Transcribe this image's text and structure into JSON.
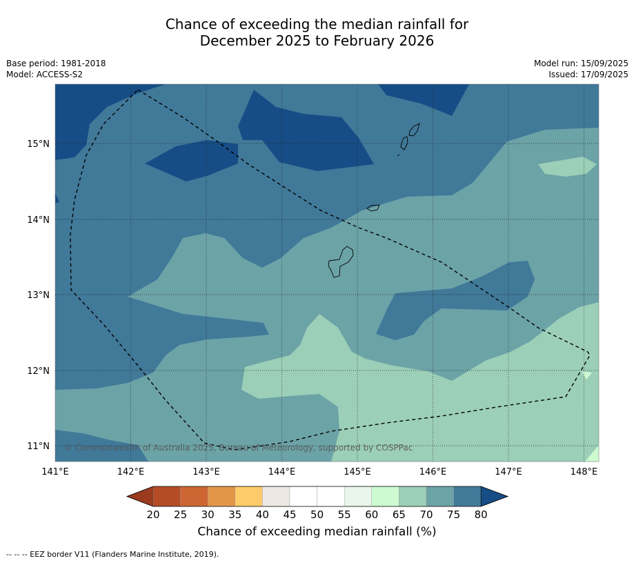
{
  "title": {
    "line1": "Chance of exceeding the median rainfall for",
    "line2": "December 2025 to February 2026"
  },
  "meta": {
    "base_period": "Base period: 1981-2018",
    "model": "Model: ACCESS-S2",
    "model_run": "Model run: 15/09/2025",
    "issued": "Issued: 17/09/2025"
  },
  "map": {
    "lon_labels": [
      "141°E",
      "142°E",
      "143°E",
      "144°E",
      "145°E",
      "146°E",
      "147°E",
      "148°E"
    ],
    "lat_labels": [
      "15°N",
      "14°N",
      "13°N",
      "12°N",
      "11°N"
    ],
    "copyright": "© Commonwealth of Australia 2025, Bureau of Meteorology, supported by COSPPac",
    "colors": {
      "c80": "#174d86",
      "c75": "#417999",
      "c70": "#6ca3a7",
      "c65": "#9ccfb7",
      "c60": "#cdfad0"
    }
  },
  "colorbar": {
    "tick_labels": [
      "20",
      "25",
      "30",
      "35",
      "40",
      "45",
      "50",
      "55",
      "60",
      "65",
      "70",
      "75",
      "80"
    ],
    "colors": [
      "#b44c26",
      "#cd6632",
      "#e29648",
      "#fccb6a",
      "#ede8e3",
      "#ffffff",
      "#ffffff",
      "#eaf6e9",
      "#cdfad0",
      "#9ccfb7",
      "#6ca3a7",
      "#417999"
    ],
    "low_extend_color": "#9a3b20",
    "high_extend_color": "#174d86",
    "label": "Chance of exceeding median rainfall (%)"
  },
  "footnote": "--  --  -- EEZ border V11 (Flanders Marine Institute, 2019)."
}
